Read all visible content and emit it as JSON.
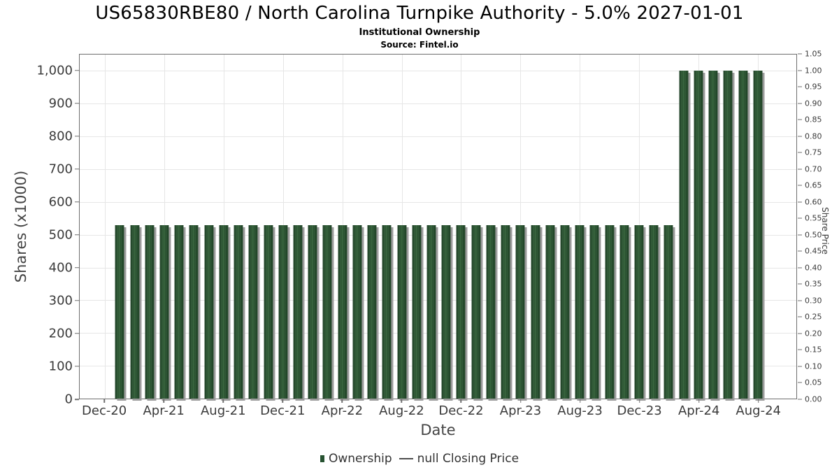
{
  "header": {
    "title": "US65830RBE80 / North Carolina Turnpike Authority - 5.0% 2027-01-01",
    "subtitle": "Institutional Ownership",
    "source": "Source: Fintel.io"
  },
  "chart_data": {
    "type": "bar",
    "title": "US65830RBE80 / North Carolina Turnpike Authority - 5.0% 2027-01-01",
    "subtitle": "Institutional Ownership",
    "source": "Source: Fintel.io",
    "xlabel": "Date",
    "ylabel_left": "Shares (x1000)",
    "ylabel_right": "Share Price",
    "ylim_left": [
      0,
      1050
    ],
    "ylim_right": [
      0,
      1.05
    ],
    "grid": true,
    "legend_position": "bottom",
    "categories": [
      "Jan-21",
      "Feb-21",
      "Mar-21",
      "Apr-21",
      "May-21",
      "Jun-21",
      "Jul-21",
      "Aug-21",
      "Sep-21",
      "Oct-21",
      "Nov-21",
      "Dec-21",
      "Jan-22",
      "Feb-22",
      "Mar-22",
      "Apr-22",
      "May-22",
      "Jun-22",
      "Jul-22",
      "Aug-22",
      "Sep-22",
      "Oct-22",
      "Nov-22",
      "Dec-22",
      "Jan-23",
      "Feb-23",
      "Mar-23",
      "Apr-23",
      "May-23",
      "Jun-23",
      "Jul-23",
      "Aug-23",
      "Sep-23",
      "Oct-23",
      "Nov-23",
      "Dec-23",
      "Jan-24",
      "Feb-24",
      "Mar-24",
      "Apr-24",
      "May-24",
      "Jun-24",
      "Jul-24",
      "Aug-24"
    ],
    "series": [
      {
        "name": "Ownership",
        "values": [
          530,
          530,
          530,
          530,
          530,
          530,
          530,
          530,
          530,
          530,
          530,
          530,
          530,
          530,
          530,
          530,
          530,
          530,
          530,
          530,
          530,
          530,
          530,
          530,
          530,
          530,
          530,
          530,
          530,
          530,
          530,
          530,
          530,
          530,
          530,
          530,
          530,
          530,
          1000,
          1000,
          1000,
          1000,
          1000,
          1000
        ]
      },
      {
        "name": "null Closing Price",
        "values": []
      }
    ],
    "bar_idx_offset": 1,
    "x_domain": [
      -1.7,
      46.6
    ],
    "x_ticks": [
      {
        "label": "Dec-20",
        "idx": 0
      },
      {
        "label": "Apr-21",
        "idx": 4
      },
      {
        "label": "Aug-21",
        "idx": 8
      },
      {
        "label": "Dec-21",
        "idx": 12
      },
      {
        "label": "Apr-22",
        "idx": 16
      },
      {
        "label": "Aug-22",
        "idx": 20
      },
      {
        "label": "Dec-22",
        "idx": 24
      },
      {
        "label": "Apr-23",
        "idx": 28
      },
      {
        "label": "Aug-23",
        "idx": 32
      },
      {
        "label": "Dec-23",
        "idx": 36
      },
      {
        "label": "Apr-24",
        "idx": 40
      },
      {
        "label": "Aug-24",
        "idx": 44
      }
    ],
    "y_ticks_left": [
      {
        "label": "0",
        "v": 0
      },
      {
        "label": "100",
        "v": 100
      },
      {
        "label": "200",
        "v": 200
      },
      {
        "label": "300",
        "v": 300
      },
      {
        "label": "400",
        "v": 400
      },
      {
        "label": "500",
        "v": 500
      },
      {
        "label": "600",
        "v": 600
      },
      {
        "label": "700",
        "v": 700
      },
      {
        "label": "800",
        "v": 800
      },
      {
        "label": "900",
        "v": 900
      },
      {
        "label": "1,000",
        "v": 1000
      }
    ],
    "y_ticks_right": [
      {
        "label": "0.00",
        "v": 0.0
      },
      {
        "label": "0.05",
        "v": 0.05
      },
      {
        "label": "0.10",
        "v": 0.1
      },
      {
        "label": "0.15",
        "v": 0.15
      },
      {
        "label": "0.20",
        "v": 0.2
      },
      {
        "label": "0.25",
        "v": 0.25
      },
      {
        "label": "0.30",
        "v": 0.3
      },
      {
        "label": "0.35",
        "v": 0.35
      },
      {
        "label": "0.40",
        "v": 0.4
      },
      {
        "label": "0.45",
        "v": 0.45
      },
      {
        "label": "0.50",
        "v": 0.5
      },
      {
        "label": "0.55",
        "v": 0.55
      },
      {
        "label": "0.60",
        "v": 0.6
      },
      {
        "label": "0.65",
        "v": 0.65
      },
      {
        "label": "0.70",
        "v": 0.7
      },
      {
        "label": "0.75",
        "v": 0.75
      },
      {
        "label": "0.80",
        "v": 0.8
      },
      {
        "label": "0.85",
        "v": 0.85
      },
      {
        "label": "0.90",
        "v": 0.9
      },
      {
        "label": "0.95",
        "v": 0.95
      },
      {
        "label": "1.00",
        "v": 1.0
      },
      {
        "label": "1.05",
        "v": 1.05
      }
    ],
    "legend": [
      {
        "label": "Ownership",
        "marker": "square",
        "color": "#275231"
      },
      {
        "label": "null Closing Price",
        "marker": "line",
        "color": "#4d4d4d"
      }
    ]
  },
  "colors": {
    "bar_green": "#2a5532",
    "bar_edge": "#1d4024",
    "bar_shadow": "#9c9c9c",
    "gridline": "#e6e6e6",
    "spine": "#6e6e6e",
    "tick_text": "#3a3a3a"
  }
}
